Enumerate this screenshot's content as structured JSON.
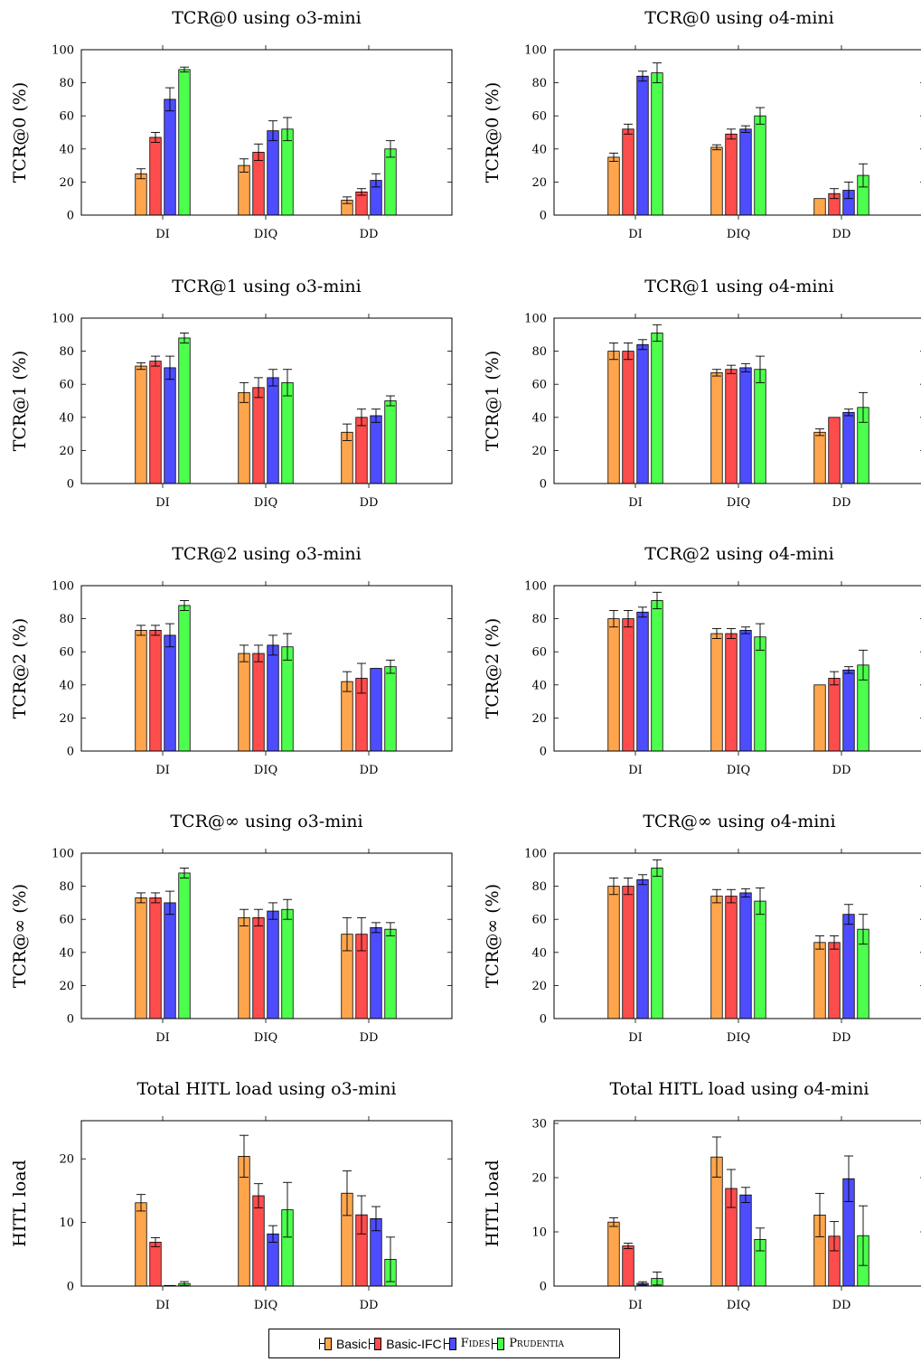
{
  "colors": {
    "Basic": "#ffa64d",
    "Basic-IFC": "#ff4d4d",
    "Fides": "#4d4dff",
    "Prudentia": "#4dff4d"
  },
  "legend": [
    {
      "label": "Basic",
      "key": "Basic",
      "small_caps": false
    },
    {
      "label": "Basic-IFC",
      "key": "Basic-IFC",
      "small_caps": false
    },
    {
      "label": "Fides",
      "key": "Fides",
      "small_caps": true
    },
    {
      "label": "Prudentia",
      "key": "Prudentia",
      "small_caps": true
    }
  ],
  "chart_data": [
    {
      "type": "bar",
      "title": "TCR@0 using o3-mini",
      "ylabel": "TCR@0 (%)",
      "ylim": [
        0,
        100
      ],
      "yticks": [
        0,
        20,
        40,
        60,
        80,
        100
      ],
      "categories": [
        "DI",
        "DIQ",
        "DD"
      ],
      "series": [
        {
          "name": "Basic",
          "values": [
            25,
            30,
            9
          ],
          "errors": [
            3,
            4,
            2
          ]
        },
        {
          "name": "Basic-IFC",
          "values": [
            47,
            38,
            14
          ],
          "errors": [
            3,
            5,
            2
          ]
        },
        {
          "name": "Fides",
          "values": [
            70,
            51,
            21
          ],
          "errors": [
            7,
            6,
            4
          ]
        },
        {
          "name": "Prudentia",
          "values": [
            88,
            52,
            40
          ],
          "errors": [
            1.5,
            7,
            5
          ]
        }
      ]
    },
    {
      "type": "bar",
      "title": "TCR@0 using o4-mini",
      "ylabel": "TCR@0 (%)",
      "ylim": [
        0,
        100
      ],
      "yticks": [
        0,
        20,
        40,
        60,
        80,
        100
      ],
      "categories": [
        "DI",
        "DIQ",
        "DD"
      ],
      "series": [
        {
          "name": "Basic",
          "values": [
            35,
            41,
            10
          ],
          "errors": [
            2.5,
            1.5,
            0
          ]
        },
        {
          "name": "Basic-IFC",
          "values": [
            52,
            49,
            13
          ],
          "errors": [
            3,
            3,
            3
          ]
        },
        {
          "name": "Fides",
          "values": [
            84,
            52,
            15
          ],
          "errors": [
            3,
            2,
            5
          ]
        },
        {
          "name": "Prudentia",
          "values": [
            86,
            60,
            24
          ],
          "errors": [
            6,
            5,
            7
          ]
        }
      ]
    },
    {
      "type": "bar",
      "title": "TCR@1 using o3-mini",
      "ylabel": "TCR@1 (%)",
      "ylim": [
        0,
        100
      ],
      "yticks": [
        0,
        20,
        40,
        60,
        80,
        100
      ],
      "categories": [
        "DI",
        "DIQ",
        "DD"
      ],
      "series": [
        {
          "name": "Basic",
          "values": [
            71,
            55,
            31
          ],
          "errors": [
            2,
            6,
            5
          ]
        },
        {
          "name": "Basic-IFC",
          "values": [
            74,
            58,
            40
          ],
          "errors": [
            3,
            6,
            5
          ]
        },
        {
          "name": "Fides",
          "values": [
            70,
            64,
            41
          ],
          "errors": [
            7,
            5,
            4
          ]
        },
        {
          "name": "Prudentia",
          "values": [
            88,
            61,
            50
          ],
          "errors": [
            3,
            8,
            3
          ]
        }
      ]
    },
    {
      "type": "bar",
      "title": "TCR@1 using o4-mini",
      "ylabel": "TCR@1 (%)",
      "ylim": [
        0,
        100
      ],
      "yticks": [
        0,
        20,
        40,
        60,
        80,
        100
      ],
      "categories": [
        "DI",
        "DIQ",
        "DD"
      ],
      "series": [
        {
          "name": "Basic",
          "values": [
            80,
            67,
            31
          ],
          "errors": [
            5,
            2,
            2
          ]
        },
        {
          "name": "Basic-IFC",
          "values": [
            80,
            69,
            40
          ],
          "errors": [
            5,
            2.5,
            0
          ]
        },
        {
          "name": "Fides",
          "values": [
            84,
            70,
            43
          ],
          "errors": [
            3,
            2.5,
            2
          ]
        },
        {
          "name": "Prudentia",
          "values": [
            91,
            69,
            46
          ],
          "errors": [
            5,
            8,
            9
          ]
        }
      ]
    },
    {
      "type": "bar",
      "title": "TCR@2 using o3-mini",
      "ylabel": "TCR@2 (%)",
      "ylim": [
        0,
        100
      ],
      "yticks": [
        0,
        20,
        40,
        60,
        80,
        100
      ],
      "categories": [
        "DI",
        "DIQ",
        "DD"
      ],
      "series": [
        {
          "name": "Basic",
          "values": [
            73,
            59,
            42
          ],
          "errors": [
            3,
            5,
            6
          ]
        },
        {
          "name": "Basic-IFC",
          "values": [
            73,
            59,
            44
          ],
          "errors": [
            3,
            5,
            9
          ]
        },
        {
          "name": "Fides",
          "values": [
            70,
            64,
            50
          ],
          "errors": [
            7,
            6,
            0
          ]
        },
        {
          "name": "Prudentia",
          "values": [
            88,
            63,
            51
          ],
          "errors": [
            3,
            8,
            4
          ]
        }
      ]
    },
    {
      "type": "bar",
      "title": "TCR@2 using o4-mini",
      "ylabel": "TCR@2 (%)",
      "ylim": [
        0,
        100
      ],
      "yticks": [
        0,
        20,
        40,
        60,
        80,
        100
      ],
      "categories": [
        "DI",
        "DIQ",
        "DD"
      ],
      "series": [
        {
          "name": "Basic",
          "values": [
            80,
            71,
            40
          ],
          "errors": [
            5,
            3,
            0
          ]
        },
        {
          "name": "Basic-IFC",
          "values": [
            80,
            71,
            44
          ],
          "errors": [
            5,
            3,
            4
          ]
        },
        {
          "name": "Fides",
          "values": [
            84,
            73,
            49
          ],
          "errors": [
            3,
            2,
            2
          ]
        },
        {
          "name": "Prudentia",
          "values": [
            91,
            69,
            52
          ],
          "errors": [
            5,
            8,
            9
          ]
        }
      ]
    },
    {
      "type": "bar",
      "title": "TCR@∞ using o3-mini",
      "ylabel": "TCR@∞ (%)",
      "ylim": [
        0,
        100
      ],
      "yticks": [
        0,
        20,
        40,
        60,
        80,
        100
      ],
      "categories": [
        "DI",
        "DIQ",
        "DD"
      ],
      "series": [
        {
          "name": "Basic",
          "values": [
            73,
            61,
            51
          ],
          "errors": [
            3,
            5,
            10
          ]
        },
        {
          "name": "Basic-IFC",
          "values": [
            73,
            61,
            51
          ],
          "errors": [
            3,
            5,
            10
          ]
        },
        {
          "name": "Fides",
          "values": [
            70,
            65,
            55
          ],
          "errors": [
            7,
            5,
            3
          ]
        },
        {
          "name": "Prudentia",
          "values": [
            88,
            66,
            54
          ],
          "errors": [
            3,
            6,
            4
          ]
        }
      ]
    },
    {
      "type": "bar",
      "title": "TCR@∞ using o4-mini",
      "ylabel": "TCR@∞ (%)",
      "ylim": [
        0,
        100
      ],
      "yticks": [
        0,
        20,
        40,
        60,
        80,
        100
      ],
      "categories": [
        "DI",
        "DIQ",
        "DD"
      ],
      "series": [
        {
          "name": "Basic",
          "values": [
            80,
            74,
            46
          ],
          "errors": [
            5,
            4,
            4
          ]
        },
        {
          "name": "Basic-IFC",
          "values": [
            80,
            74,
            46
          ],
          "errors": [
            5,
            4,
            4
          ]
        },
        {
          "name": "Fides",
          "values": [
            84,
            76,
            63
          ],
          "errors": [
            3,
            2.5,
            6
          ]
        },
        {
          "name": "Prudentia",
          "values": [
            91,
            71,
            54
          ],
          "errors": [
            5,
            8,
            9
          ]
        }
      ]
    },
    {
      "type": "bar",
      "title": "Total HITL load using o3-mini",
      "ylabel": "HITL load",
      "ylim": [
        0,
        26
      ],
      "yticks": [
        0,
        10,
        20
      ],
      "categories": [
        "DI",
        "DIQ",
        "DD"
      ],
      "series": [
        {
          "name": "Basic",
          "values": [
            13.1,
            20.4,
            14.6
          ],
          "errors": [
            1.3,
            3.3,
            3.5
          ]
        },
        {
          "name": "Basic-IFC",
          "values": [
            6.9,
            14.2,
            11.2
          ],
          "errors": [
            0.7,
            1.9,
            3
          ]
        },
        {
          "name": "Fides",
          "values": [
            0.1,
            8.2,
            10.6
          ],
          "errors": [
            0,
            1.3,
            1.9
          ]
        },
        {
          "name": "Prudentia",
          "values": [
            0.4,
            12,
            4.2
          ],
          "errors": [
            0.3,
            4.3,
            3.5
          ]
        }
      ]
    },
    {
      "type": "bar",
      "title": "Total HITL load using o4-mini",
      "ylabel": "HITL load",
      "ylim": [
        0,
        30.5
      ],
      "yticks": [
        0,
        10,
        20,
        30
      ],
      "categories": [
        "DI",
        "DIQ",
        "DD"
      ],
      "series": [
        {
          "name": "Basic",
          "values": [
            11.8,
            23.8,
            13.1
          ],
          "errors": [
            0.8,
            3.7,
            4
          ]
        },
        {
          "name": "Basic-IFC",
          "values": [
            7.4,
            18,
            9.2
          ],
          "errors": [
            0.5,
            3.5,
            2.7
          ]
        },
        {
          "name": "Fides",
          "values": [
            0.5,
            16.8,
            19.8
          ],
          "errors": [
            0.3,
            1.4,
            4.2
          ]
        },
        {
          "name": "Prudentia",
          "values": [
            1.4,
            8.6,
            9.3
          ],
          "errors": [
            1.2,
            2.1,
            5.5
          ]
        }
      ]
    }
  ]
}
